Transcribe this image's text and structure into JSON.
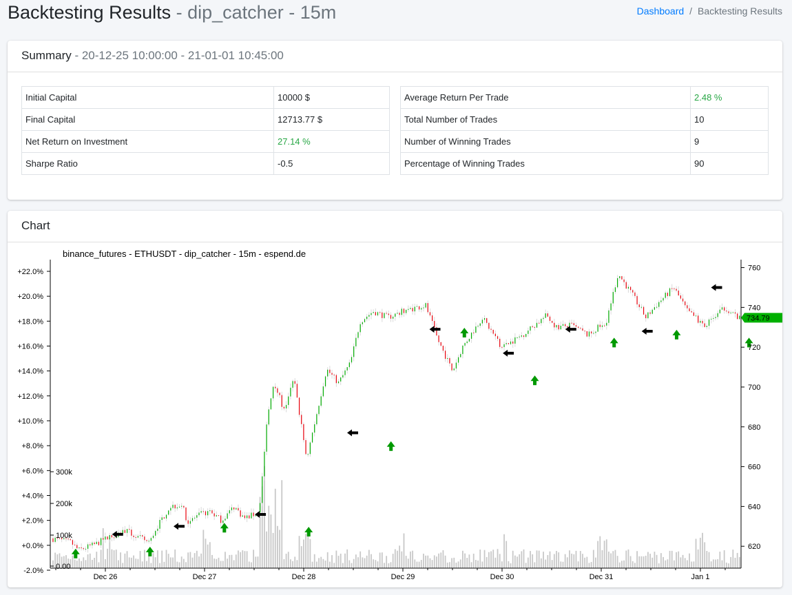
{
  "header": {
    "title": "Backtesting Results",
    "subtitle": "- dip_catcher - 15m",
    "breadcrumb": {
      "home": "Dashboard",
      "current": "Backtesting Results"
    }
  },
  "summary": {
    "title": "Summary",
    "range": "- 20-12-25 10:00:00 - 21-01-01 10:45:00",
    "left_rows": [
      {
        "label": "Initial Capital",
        "value": "10000 $"
      },
      {
        "label": "Final Capital",
        "value": "12713.77 $"
      },
      {
        "label": "Net Return on Investment",
        "value": "27.14 %"
      },
      {
        "label": "Sharpe Ratio",
        "value": "-0.5"
      }
    ],
    "right_rows": [
      {
        "label": "Average Return Per Trade",
        "value": "2.48 %"
      },
      {
        "label": "Total Number of Trades",
        "value": "10"
      },
      {
        "label": "Number of Winning Trades",
        "value": "9"
      },
      {
        "label": "Percentage of Winning Trades",
        "value": "90"
      }
    ]
  },
  "chart": {
    "title": "Chart",
    "chart_data": {
      "type": "candlestick",
      "title": "binance_futures - ETHUSDT - dip_catcher - 15m - espend.de",
      "x_ticks": [
        "Dec 26",
        "Dec 27",
        "Dec 28",
        "Dec 29",
        "Dec 30",
        "Dec 31",
        "Jan 1"
      ],
      "left_axis_ticks": [
        "+22.0%",
        "+20.0%",
        "+18.0%",
        "+16.0%",
        "+14.0%",
        "+12.0%",
        "+10.0%",
        "+8.0%",
        "+6.0%",
        "+4.0%",
        "+2.0%",
        "+0.0%",
        "-2.0%"
      ],
      "right_axis_ticks": [
        "760",
        "740",
        "720",
        "700",
        "680",
        "660",
        "640",
        "620"
      ],
      "volume_ticks": [
        "300k",
        "200k",
        "100k",
        "0.00"
      ],
      "right_ylim": [
        609,
        764
      ],
      "last_price": "734.79",
      "price_path_days_vs_price": [
        [
          0.0,
          624
        ],
        [
          0.2,
          622
        ],
        [
          0.28,
          618
        ],
        [
          0.45,
          621
        ],
        [
          0.6,
          625
        ],
        [
          0.75,
          628
        ],
        [
          0.85,
          625
        ],
        [
          1.0,
          622
        ],
        [
          1.05,
          628
        ],
        [
          1.2,
          640
        ],
        [
          1.32,
          641
        ],
        [
          1.38,
          632
        ],
        [
          1.5,
          636
        ],
        [
          1.62,
          637
        ],
        [
          1.72,
          633
        ],
        [
          1.85,
          640
        ],
        [
          1.95,
          634
        ],
        [
          2.1,
          637
        ],
        [
          2.18,
          683
        ],
        [
          2.25,
          703
        ],
        [
          2.35,
          688
        ],
        [
          2.45,
          704
        ],
        [
          2.58,
          664
        ],
        [
          2.78,
          709
        ],
        [
          2.9,
          702
        ],
        [
          3.02,
          712
        ],
        [
          3.12,
          733
        ],
        [
          3.25,
          738
        ],
        [
          3.4,
          735
        ],
        [
          3.6,
          739
        ],
        [
          3.78,
          741
        ],
        [
          3.9,
          724
        ],
        [
          4.05,
          708
        ],
        [
          4.15,
          720
        ],
        [
          4.35,
          735
        ],
        [
          4.55,
          720
        ],
        [
          4.75,
          726
        ],
        [
          5.0,
          736
        ],
        [
          5.1,
          730
        ],
        [
          5.25,
          731
        ],
        [
          5.42,
          726
        ],
        [
          5.6,
          733
        ],
        [
          5.72,
          757
        ],
        [
          5.88,
          745
        ],
        [
          6.0,
          735
        ],
        [
          6.12,
          742
        ],
        [
          6.28,
          750
        ],
        [
          6.42,
          738
        ],
        [
          6.6,
          731
        ],
        [
          6.8,
          740
        ],
        [
          6.95,
          734
        ],
        [
          7.05,
          745
        ],
        [
          7.2,
          740
        ],
        [
          7.35,
          733
        ],
        [
          7.45,
          734.79
        ]
      ],
      "trade_markers": [
        {
          "type": "buy",
          "day": 0.25,
          "price": 616
        },
        {
          "type": "sell",
          "day": 0.68,
          "price": 626
        },
        {
          "type": "buy",
          "day": 1.0,
          "price": 617
        },
        {
          "type": "sell",
          "day": 1.3,
          "price": 630
        },
        {
          "type": "buy",
          "day": 1.75,
          "price": 629
        },
        {
          "type": "sell",
          "day": 2.12,
          "price": 636
        },
        {
          "type": "buy",
          "day": 2.6,
          "price": 627
        },
        {
          "type": "sell",
          "day": 3.05,
          "price": 677
        },
        {
          "type": "buy",
          "day": 3.43,
          "price": 670
        },
        {
          "type": "sell",
          "day": 3.88,
          "price": 729
        },
        {
          "type": "buy",
          "day": 4.17,
          "price": 727
        },
        {
          "type": "sell",
          "day": 4.62,
          "price": 717
        },
        {
          "type": "buy",
          "day": 4.88,
          "price": 703
        },
        {
          "type": "sell",
          "day": 5.25,
          "price": 729
        },
        {
          "type": "buy",
          "day": 5.68,
          "price": 722
        },
        {
          "type": "sell",
          "day": 6.02,
          "price": 728
        },
        {
          "type": "buy",
          "day": 6.31,
          "price": 726
        },
        {
          "type": "sell",
          "day": 6.72,
          "price": 750
        },
        {
          "type": "buy",
          "day": 7.04,
          "price": 722
        },
        {
          "type": "sell",
          "day": 7.45,
          "price": 729
        }
      ],
      "colors": {
        "up": "#00aa00",
        "down": "#e8000b",
        "volume": "#c8c8c8",
        "buy": "#009900",
        "sell": "#000000",
        "last_price_tag": "#00b000"
      }
    }
  }
}
